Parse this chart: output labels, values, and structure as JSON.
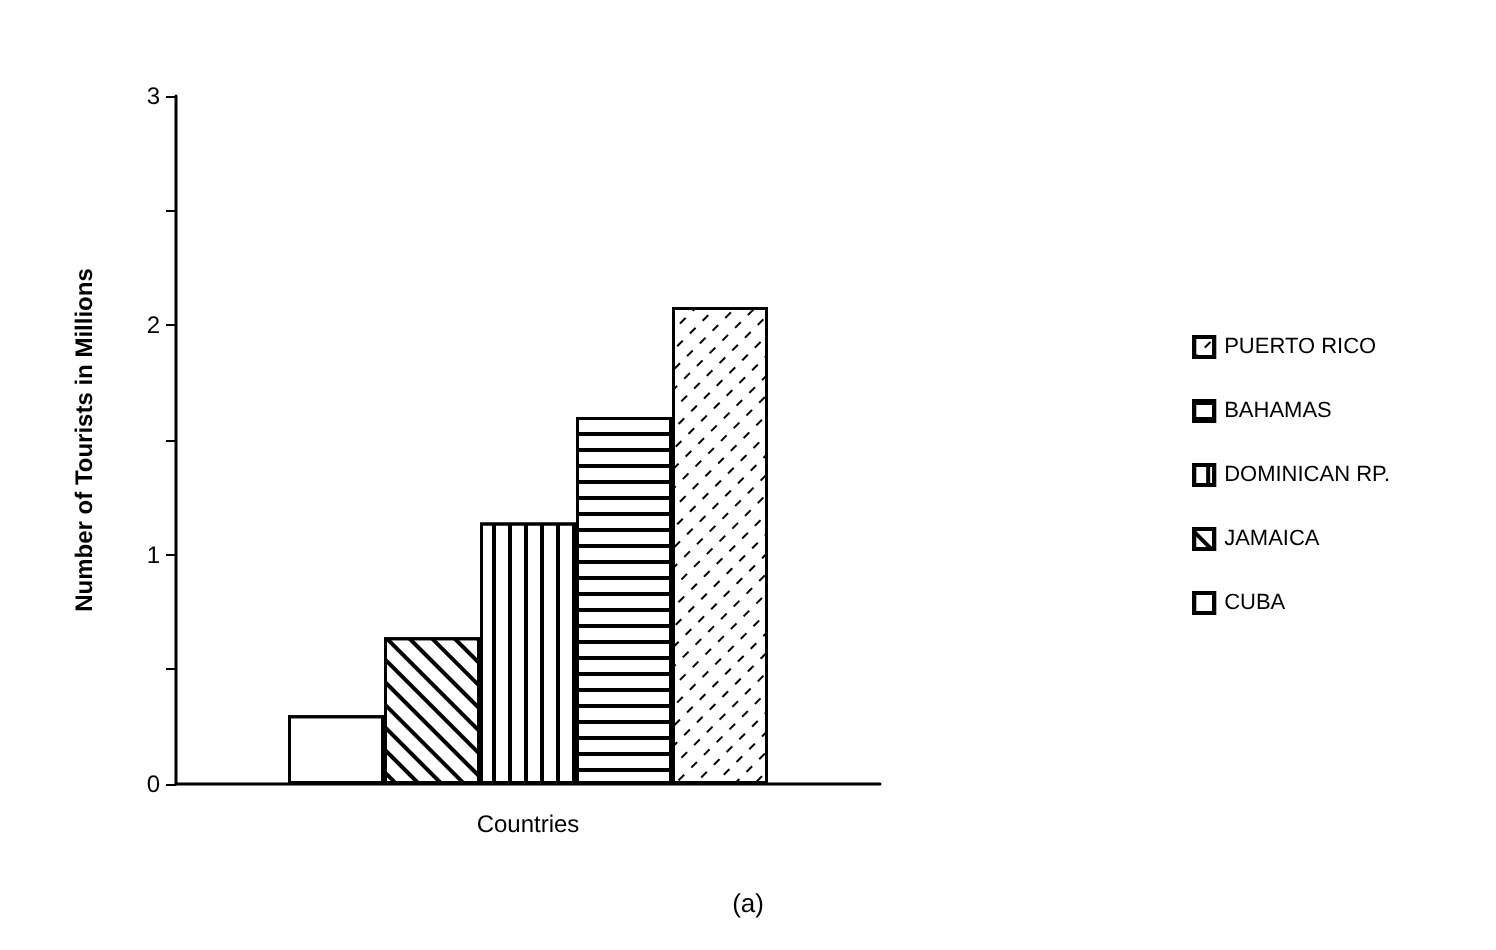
{
  "chart_data": {
    "type": "bar",
    "ylabel": "Number of Tourists in Millions",
    "xlabel": "Countries",
    "categories": [
      null
    ],
    "series": [
      {
        "name": "CUBA",
        "color": "#ffffff",
        "values": [
          0.3
        ]
      },
      {
        "name": "JAMAICA",
        "color": "#ffffff",
        "values": [
          0.64
        ]
      },
      {
        "name": "DOMINICAN RP.",
        "color": "#ffffff",
        "values": [
          1.14
        ]
      },
      {
        "name": "BAHAMAS",
        "color": "#ffffff",
        "values": [
          1.6
        ]
      },
      {
        "name": "PUERTO RICO",
        "color": "#ffffff",
        "values": [
          2.08
        ]
      }
    ],
    "ylim": [
      0,
      3
    ],
    "yticks": [
      0,
      {
        "value": 0.5,
        "label": null
      },
      1,
      {
        "value": 1.5,
        "label": null
      },
      2,
      {
        "value": 2.5,
        "label": null
      },
      3
    ],
    "grid": false,
    "legend": "right",
    "annotations": [
      "(a)"
    ]
  }
}
